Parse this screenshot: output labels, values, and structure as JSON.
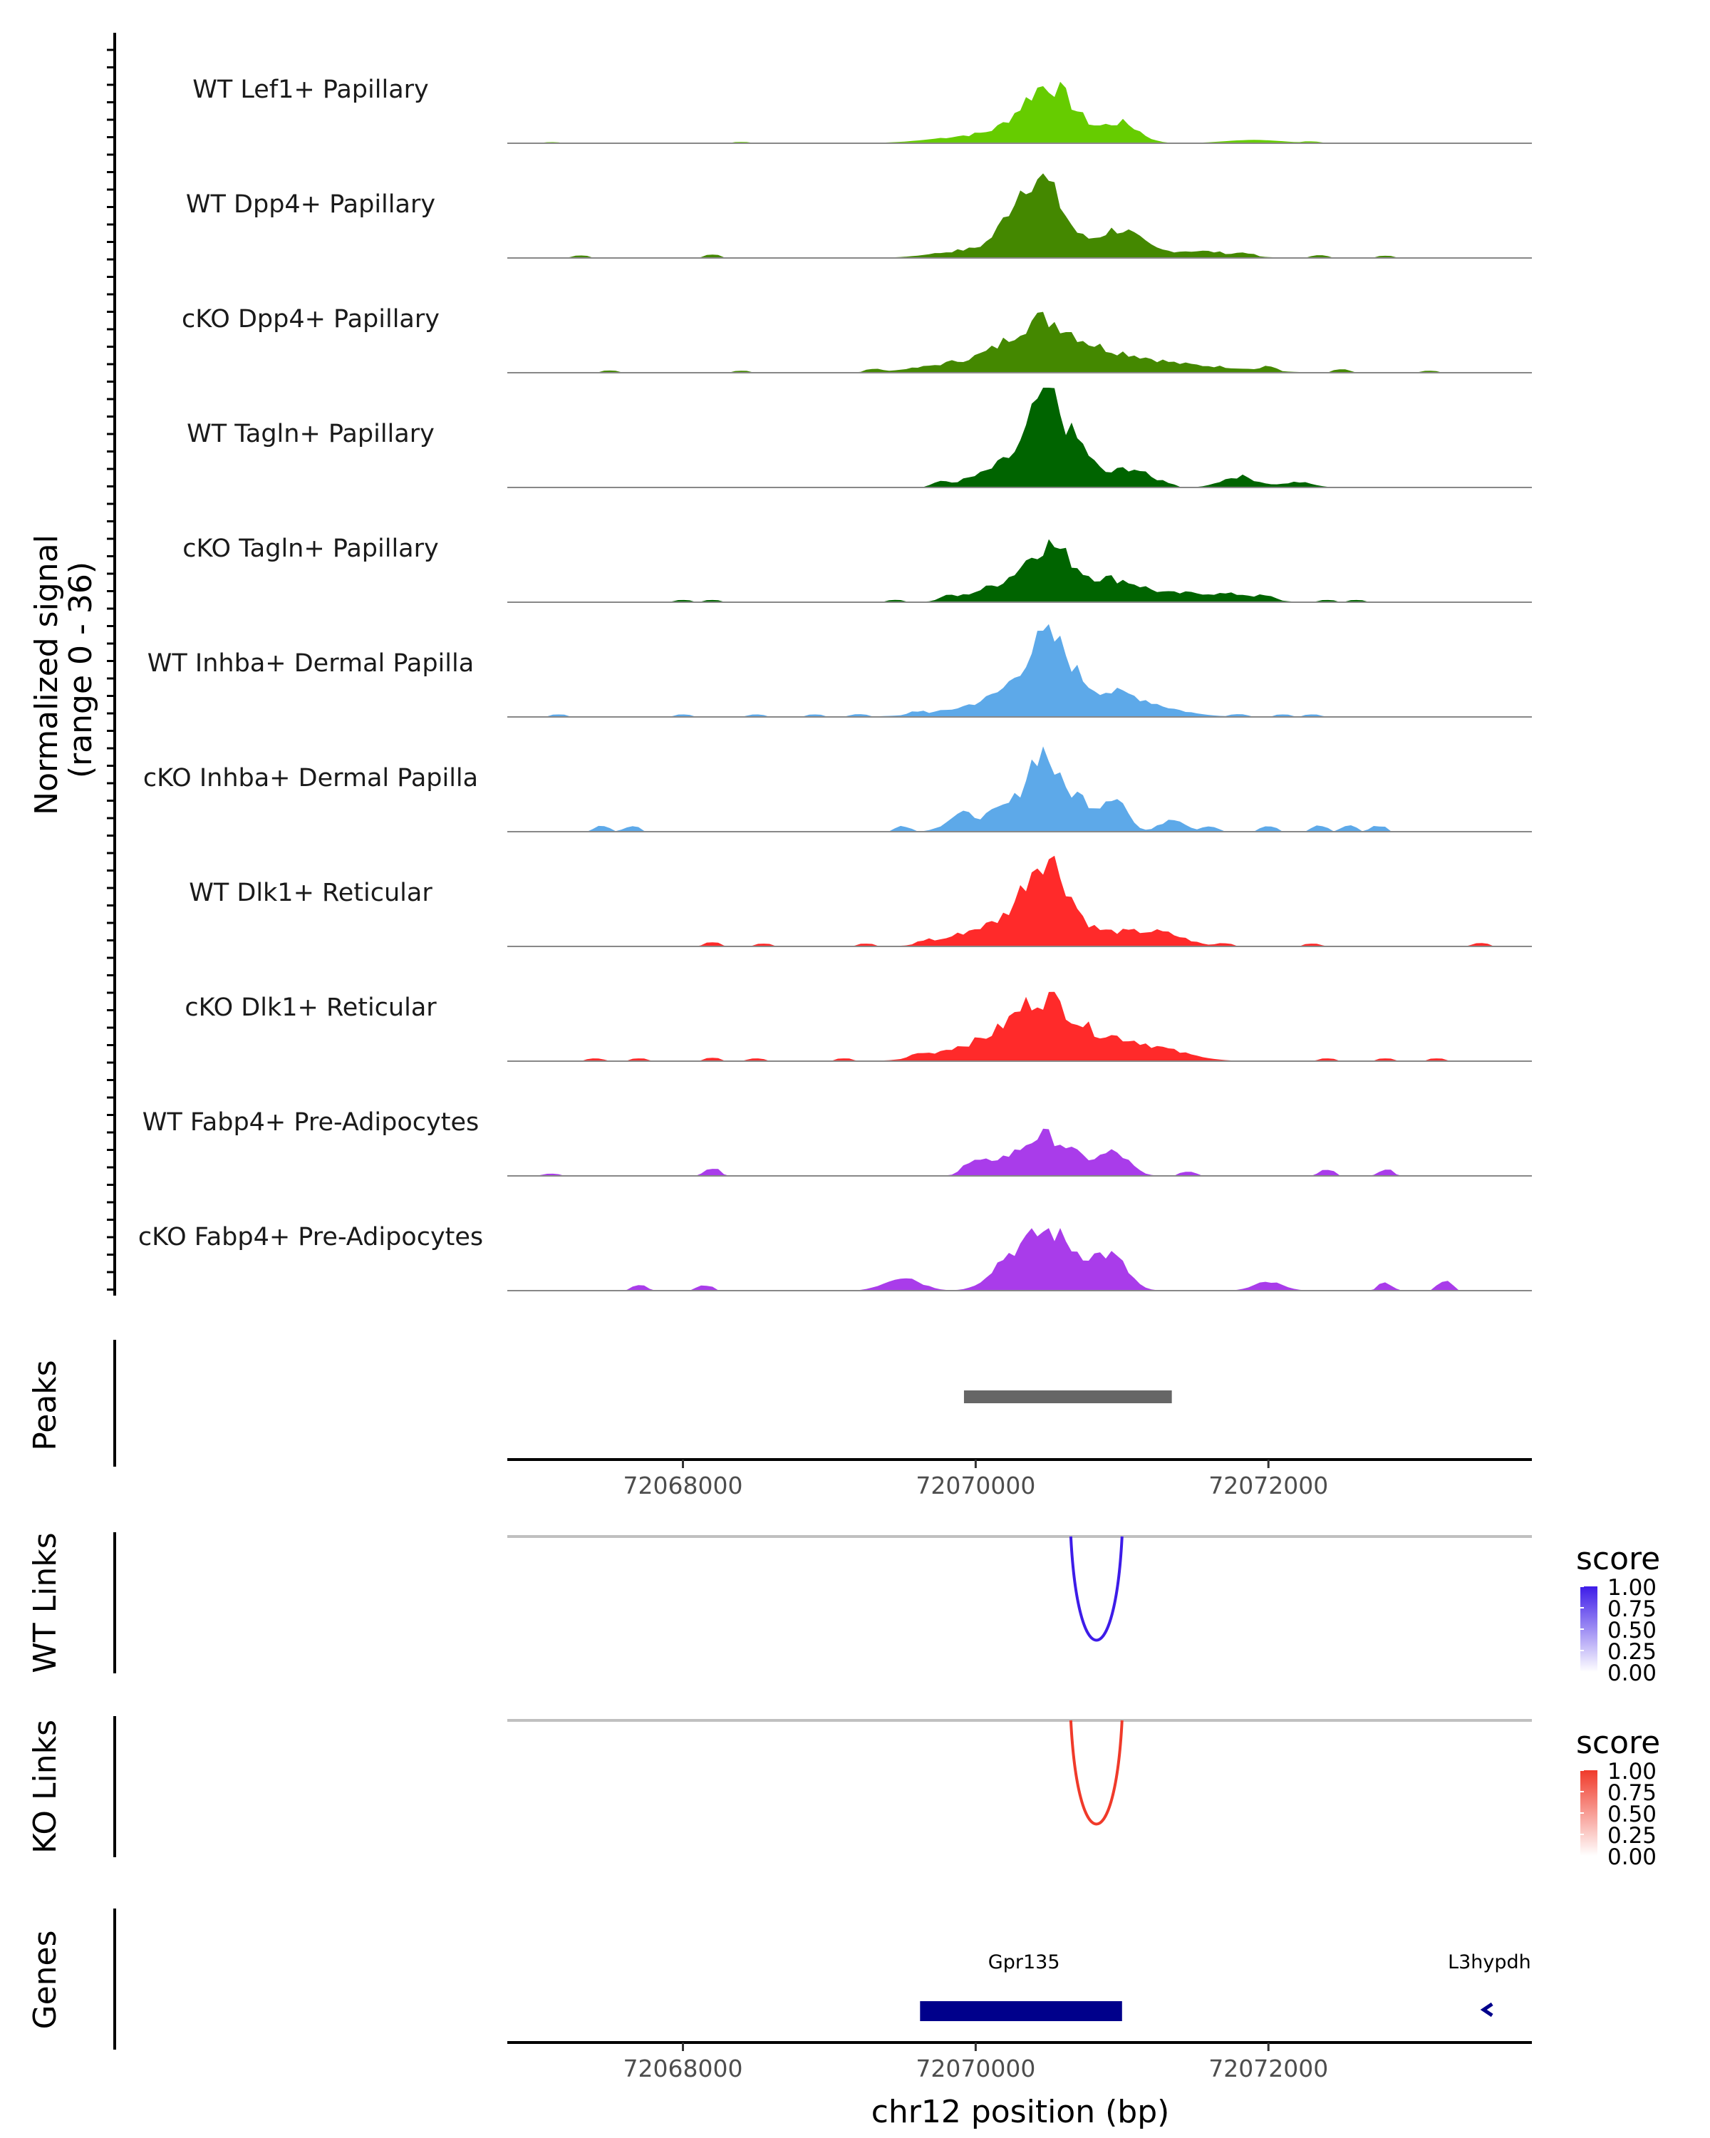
{
  "chart_data": {
    "type": "area",
    "title": "",
    "ylabel": "Normalized signal\n(range 0 - 36)",
    "yrange": [
      0,
      36
    ],
    "xlabel": "chr12 position (bp)",
    "xlim": [
      72066800,
      72073800
    ],
    "x_ticks": [
      "72068000",
      "72070000",
      "72072000"
    ],
    "x_tick_values": [
      72068000,
      72070000,
      72072000
    ],
    "tracks": [
      {
        "name": "WT Lef1+ Papillary",
        "color": "#66CC00",
        "peaks": [
          [
            72070500,
            20,
            180
          ],
          [
            72071000,
            7,
            120
          ],
          [
            72070050,
            3,
            300
          ],
          [
            72071900,
            1.2,
            200
          ]
        ],
        "noise": [
          [
            72067100,
            0.4
          ],
          [
            72068400,
            0.5
          ],
          [
            72072300,
            0.5
          ]
        ]
      },
      {
        "name": "WT Dpp4+ Papillary",
        "color": "#448800",
        "peaks": [
          [
            72070460,
            25,
            150
          ],
          [
            72070280,
            9,
            120
          ],
          [
            72070970,
            10,
            150
          ],
          [
            72071500,
            2.5,
            250
          ],
          [
            72070000,
            3,
            250
          ]
        ],
        "noise": [
          [
            72067300,
            0.9
          ],
          [
            72068200,
            1.2
          ],
          [
            72071850,
            1
          ],
          [
            72072350,
            1
          ],
          [
            72072800,
            0.8
          ]
        ]
      },
      {
        "name": "cKO Dpp4+ Papillary",
        "color": "#448800",
        "peaks": [
          [
            72070450,
            14,
            200
          ],
          [
            72070900,
            7,
            300
          ],
          [
            72070100,
            5,
            350
          ],
          [
            72071600,
            2,
            300
          ]
        ],
        "noise": [
          [
            72067500,
            0.8
          ],
          [
            72068400,
            0.7
          ],
          [
            72069300,
            1
          ],
          [
            72072000,
            1.5
          ],
          [
            72072500,
            1.2
          ],
          [
            72073100,
            0.7
          ]
        ]
      },
      {
        "name": "WT Tagln+ Papillary",
        "color": "#006400",
        "peaks": [
          [
            72070480,
            32,
            100
          ],
          [
            72070700,
            14,
            100
          ],
          [
            72070260,
            9,
            130
          ],
          [
            72071050,
            7,
            130
          ],
          [
            72070000,
            3,
            150
          ],
          [
            72071800,
            4,
            120
          ],
          [
            72072200,
            2,
            100
          ]
        ],
        "noise": [
          [
            72069750,
            1.2
          ],
          [
            72071300,
            1
          ]
        ]
      },
      {
        "name": "cKO Tagln+ Papillary",
        "color": "#006400",
        "peaks": [
          [
            72070500,
            19,
            160
          ],
          [
            72070950,
            8,
            200
          ],
          [
            72070150,
            5,
            200
          ],
          [
            72071500,
            3,
            200
          ],
          [
            72071850,
            2,
            150
          ]
        ],
        "noise": [
          [
            72068000,
            0.8
          ],
          [
            72068200,
            0.8
          ],
          [
            72069450,
            0.8
          ],
          [
            72069800,
            1.2
          ],
          [
            72072000,
            0.8
          ],
          [
            72072400,
            0.8
          ],
          [
            72072600,
            0.8
          ]
        ]
      },
      {
        "name": "WT Inhba+ Dermal Papilla",
        "color": "#5DA9E9",
        "peaks": [
          [
            72070500,
            26,
            160
          ],
          [
            72070950,
            8,
            200
          ],
          [
            72070200,
            5,
            200
          ],
          [
            72069950,
            2,
            300
          ],
          [
            72071300,
            2,
            200
          ]
        ],
        "noise": [
          [
            72067150,
            0.9
          ],
          [
            72068000,
            0.9
          ],
          [
            72068500,
            0.9
          ],
          [
            72068900,
            0.9
          ],
          [
            72069200,
            0.9
          ],
          [
            72069600,
            1
          ],
          [
            72071800,
            0.9
          ],
          [
            72072100,
            0.9
          ],
          [
            72072300,
            0.9
          ]
        ]
      },
      {
        "name": "cKO Inhba+ Dermal Papilla",
        "color": "#5DA9E9",
        "peaks": [
          [
            72070450,
            28,
            100
          ],
          [
            72070700,
            12,
            100
          ],
          [
            72070950,
            13,
            80
          ],
          [
            72070200,
            8,
            120
          ],
          [
            72069900,
            6,
            100
          ],
          [
            72071350,
            5,
            80
          ]
        ],
        "noise": [
          [
            72067450,
            2
          ],
          [
            72067650,
            2
          ],
          [
            72069500,
            2
          ],
          [
            72071600,
            2
          ],
          [
            72072000,
            2
          ],
          [
            72072350,
            2
          ],
          [
            72072550,
            2
          ],
          [
            72072750,
            2
          ]
        ]
      },
      {
        "name": "WT Dlk1+ Reticular",
        "color": "#FF2A2A",
        "peaks": [
          [
            72070480,
            30,
            150
          ],
          [
            72070150,
            6,
            200
          ],
          [
            72070950,
            5,
            250
          ],
          [
            72069900,
            2,
            200
          ],
          [
            72071300,
            3,
            150
          ]
        ],
        "noise": [
          [
            72068200,
            1.5
          ],
          [
            72068550,
            1
          ],
          [
            72069250,
            1
          ],
          [
            72069650,
            1.2
          ],
          [
            72071700,
            1
          ],
          [
            72072300,
            1
          ],
          [
            72073450,
            1.2
          ]
        ]
      },
      {
        "name": "cKO Dlk1+ Reticular",
        "color": "#FF2A2A",
        "peaks": [
          [
            72070480,
            20,
            200
          ],
          [
            72070950,
            7,
            200
          ],
          [
            72070150,
            6,
            250
          ],
          [
            72071300,
            3,
            200
          ],
          [
            72069800,
            2,
            200
          ]
        ],
        "noise": [
          [
            72067400,
            1
          ],
          [
            72067700,
            1
          ],
          [
            72068200,
            1.2
          ],
          [
            72068500,
            1
          ],
          [
            72069100,
            1
          ],
          [
            72069600,
            1
          ],
          [
            72072400,
            1
          ],
          [
            72072800,
            1
          ],
          [
            72073150,
            1
          ]
        ]
      },
      {
        "name": "WT Fabp4+ Pre-Adipocytes",
        "color": "#A93CEA",
        "peaks": [
          [
            72070450,
            14,
            150
          ],
          [
            72070950,
            8,
            100
          ],
          [
            72070100,
            5,
            120
          ],
          [
            72070700,
            4,
            120
          ]
        ],
        "noise": [
          [
            72067100,
            0.8
          ],
          [
            72068200,
            3
          ],
          [
            72069950,
            2
          ],
          [
            72071450,
            1.5
          ],
          [
            72072400,
            2
          ],
          [
            72072800,
            2
          ]
        ]
      },
      {
        "name": "cKO Fabp4+ Pre-Adipocytes",
        "color": "#A93CEA",
        "peaks": [
          [
            72070500,
            21,
            170
          ],
          [
            72070950,
            10,
            100
          ],
          [
            72070200,
            8,
            120
          ],
          [
            72069500,
            5,
            120
          ],
          [
            72070800,
            5,
            100
          ],
          [
            72072000,
            3,
            100
          ]
        ],
        "noise": [
          [
            72067700,
            2
          ],
          [
            72068150,
            2
          ],
          [
            72072800,
            2.5
          ],
          [
            72073200,
            3
          ]
        ]
      }
    ],
    "peaks_track": {
      "label": "Peaks",
      "ranges": [
        [
          72069920,
          72071340
        ]
      ],
      "color": "#666666"
    },
    "link_tracks": [
      {
        "label": "WT Links",
        "color": "#3D1CE8",
        "start": 72070650,
        "end": 72071000,
        "legend_title": "score",
        "legend_ticks": [
          "1.00",
          "0.75",
          "0.50",
          "0.25",
          "0.00"
        ],
        "low_color": "#FFFFFF"
      },
      {
        "label": "KO Links",
        "color": "#F03A2A",
        "start": 72070650,
        "end": 72071000,
        "legend_title": "score",
        "legend_ticks": [
          "1.00",
          "0.75",
          "0.50",
          "0.25",
          "0.00"
        ],
        "low_color": "#FFFFFF"
      }
    ],
    "genes_track": {
      "label": "Genes",
      "color": "#00008B",
      "genes": [
        {
          "name": "Gpr135",
          "start": 72069620,
          "end": 72071000,
          "label_pos": 72070330,
          "strand": "+"
        },
        {
          "name": "L3hypdh",
          "start": 72073470,
          "end": 72073520,
          "label_pos": 72073510,
          "strand": "-"
        }
      ]
    }
  }
}
